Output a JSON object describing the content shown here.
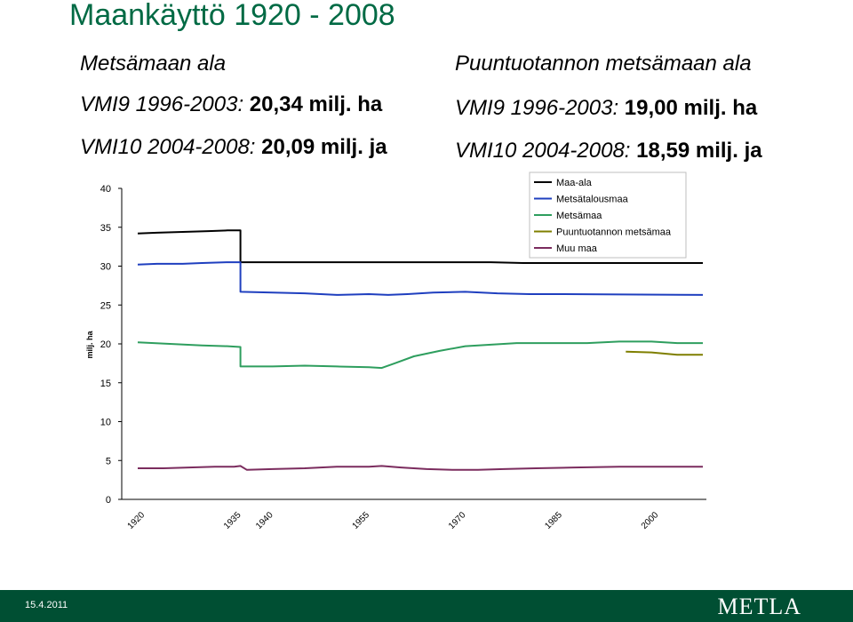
{
  "title": "Maankäyttö 1920 - 2008",
  "left": {
    "heading": "Metsämaan ala",
    "line1_key": "VMI9 1996-2003:",
    "line1_val": "20,34 milj. ha",
    "line2_key": "VMI10 2004-2008:",
    "line2_val": "20,09 milj. ja"
  },
  "right": {
    "heading": "Puuntuotannon metsämaan ala",
    "line1_key": "VMI9 1996-2003:",
    "line1_val": "19,00 milj. ha",
    "line2_key": "VMI10 2004-2008:",
    "line2_val": "18,59 milj. ja"
  },
  "footer": {
    "date": "15.4.2011",
    "logo_text": "METLA",
    "color": "#004f33"
  },
  "chart_data": {
    "type": "line",
    "ylabel": "milj. ha",
    "ylim": [
      0,
      40
    ],
    "yticks": [
      "0",
      "5",
      "10",
      "15",
      "20",
      "25",
      "30",
      "35",
      "40"
    ],
    "xlim": [
      1920,
      2008
    ],
    "xticks": [
      "1920",
      "1935",
      "1940",
      "1955",
      "1970",
      "1985",
      "2000"
    ],
    "legend_position": "top-right",
    "series": [
      {
        "name": "Maa-ala",
        "color": "#000000",
        "points": [
          [
            1920,
            34.2
          ],
          [
            1923,
            34.3
          ],
          [
            1927,
            34.4
          ],
          [
            1931,
            34.5
          ],
          [
            1934,
            34.6
          ],
          [
            1936,
            34.6
          ],
          [
            1936,
            30.5
          ],
          [
            1960,
            30.5
          ],
          [
            1975,
            30.5
          ],
          [
            1980,
            30.4
          ],
          [
            2008,
            30.4
          ]
        ]
      },
      {
        "name": "Metsätalousmaa",
        "color": "#1f3fbf",
        "points": [
          [
            1920,
            30.2
          ],
          [
            1923,
            30.3
          ],
          [
            1927,
            30.3
          ],
          [
            1930,
            30.4
          ],
          [
            1934,
            30.5
          ],
          [
            1936,
            30.5
          ],
          [
            1936,
            26.7
          ],
          [
            1941,
            26.6
          ],
          [
            1946,
            26.5
          ],
          [
            1951,
            26.3
          ],
          [
            1956,
            26.4
          ],
          [
            1959,
            26.3
          ],
          [
            1962,
            26.4
          ],
          [
            1966,
            26.6
          ],
          [
            1971,
            26.7
          ],
          [
            1976,
            26.5
          ],
          [
            1981,
            26.4
          ],
          [
            1986,
            26.4
          ],
          [
            2008,
            26.3
          ]
        ]
      },
      {
        "name": "Metsämaa",
        "color": "#2e9e5e",
        "points": [
          [
            1920,
            20.2
          ],
          [
            1925,
            20.0
          ],
          [
            1930,
            19.8
          ],
          [
            1934,
            19.7
          ],
          [
            1936,
            19.6
          ],
          [
            1936,
            17.1
          ],
          [
            1941,
            17.1
          ],
          [
            1946,
            17.2
          ],
          [
            1951,
            17.1
          ],
          [
            1956,
            17.0
          ],
          [
            1958,
            16.9
          ],
          [
            1960,
            17.5
          ],
          [
            1963,
            18.4
          ],
          [
            1967,
            19.1
          ],
          [
            1971,
            19.7
          ],
          [
            1975,
            19.9
          ],
          [
            1979,
            20.1
          ],
          [
            1985,
            20.1
          ],
          [
            1990,
            20.1
          ],
          [
            1995,
            20.3
          ],
          [
            2000,
            20.3
          ],
          [
            2004,
            20.1
          ],
          [
            2008,
            20.1
          ]
        ]
      },
      {
        "name": "Puuntuotannon metsämaa",
        "color": "#7f7f00",
        "points": [
          [
            1996,
            19.0
          ],
          [
            2000,
            18.9
          ],
          [
            2004,
            18.6
          ],
          [
            2008,
            18.6
          ]
        ]
      },
      {
        "name": "Muu maa",
        "color": "#7b2c5e",
        "points": [
          [
            1920,
            4.0
          ],
          [
            1924,
            4.0
          ],
          [
            1928,
            4.1
          ],
          [
            1932,
            4.2
          ],
          [
            1935,
            4.2
          ],
          [
            1936,
            4.3
          ],
          [
            1937,
            3.8
          ],
          [
            1941,
            3.9
          ],
          [
            1946,
            4.0
          ],
          [
            1951,
            4.2
          ],
          [
            1956,
            4.2
          ],
          [
            1958,
            4.3
          ],
          [
            1961,
            4.1
          ],
          [
            1965,
            3.9
          ],
          [
            1969,
            3.8
          ],
          [
            1973,
            3.8
          ],
          [
            1977,
            3.9
          ],
          [
            1982,
            4.0
          ],
          [
            1988,
            4.1
          ],
          [
            1995,
            4.2
          ],
          [
            2000,
            4.2
          ],
          [
            2008,
            4.2
          ]
        ]
      }
    ]
  }
}
